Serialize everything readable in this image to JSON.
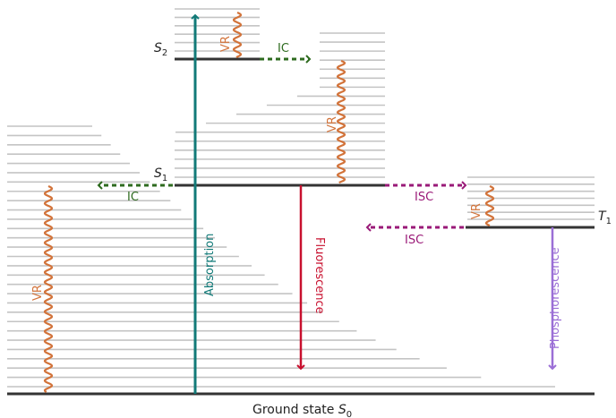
{
  "states": {
    "s2": {
      "symbol": "S",
      "sub": "2"
    },
    "s1": {
      "symbol": "S",
      "sub": "1"
    },
    "t1": {
      "symbol": "T",
      "sub": "1"
    },
    "ground": {
      "prefix": "Ground state ",
      "symbol": "S",
      "sub": "0"
    }
  },
  "transitions": {
    "absorption": "Absorption",
    "fluorescence": "Fluorescence",
    "phosphorescence": "Phosphorescence",
    "ic_upper": "IC",
    "ic_lower": "IC",
    "isc_forward": "ISC",
    "isc_reverse": "ISC",
    "vr_s2": "VR",
    "vr_s1": "VR",
    "vr_t1": "VR",
    "vr_s0": "VR"
  },
  "colors": {
    "absorption": "#127a78",
    "fluorescence": "#c8102e",
    "phosphorescence": "#9b6fd6",
    "ic": "#2e6b1f",
    "isc": "#9a1a78",
    "vr": "#d2733a",
    "level": "#333333",
    "sublevel": "#c4c4c4"
  }
}
